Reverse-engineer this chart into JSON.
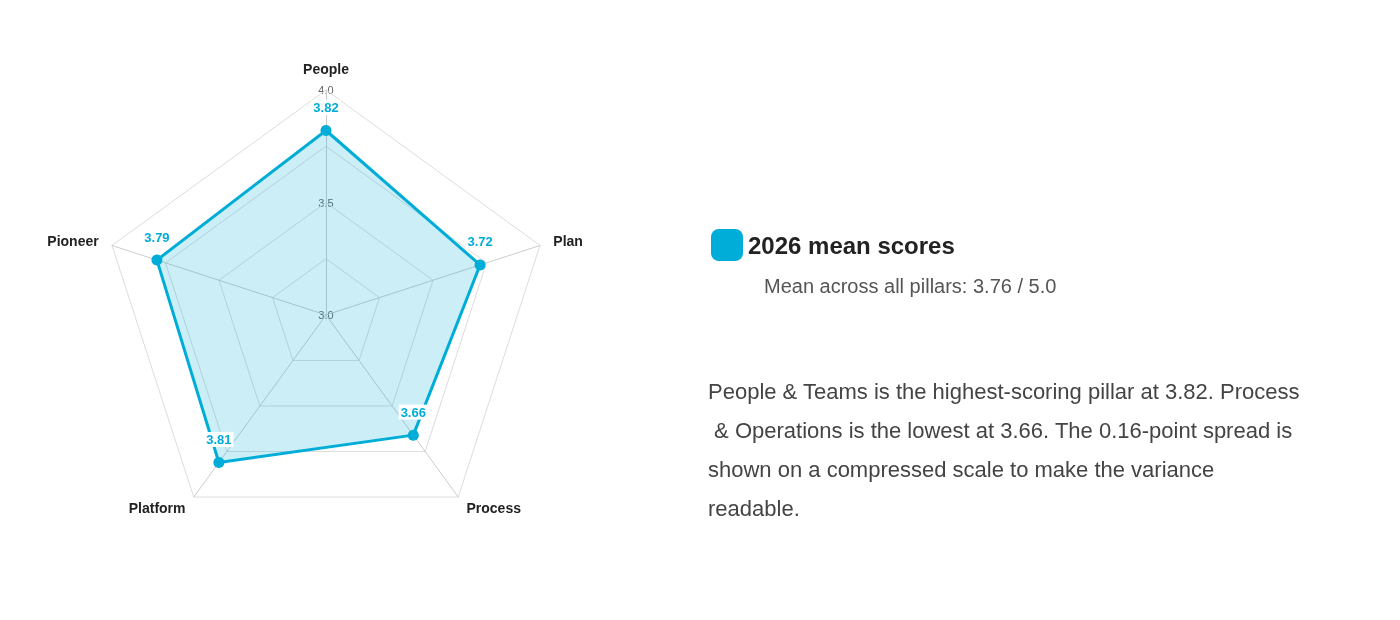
{
  "chart_data": {
    "type": "radar",
    "categories": [
      "People",
      "Plan",
      "Process",
      "Platform",
      "Pioneer"
    ],
    "series": [
      {
        "name": "2026 mean scores",
        "color": "#00add8",
        "values": [
          3.82,
          3.72,
          3.66,
          3.81,
          3.79
        ]
      }
    ],
    "ylim": [
      3,
      4
    ],
    "yticks": [
      {
        "value": 3,
        "label": "3.0"
      },
      {
        "value": 3.5,
        "label": "3.5"
      },
      {
        "value": 4,
        "label": "4.0"
      }
    ],
    "data_labels": true,
    "legend": "right",
    "marker": "circle",
    "grid": true,
    "annotations": [
      "Mean across all pillars: 3.76 / 5.0",
      "People & Teams is the highest-scoring pillar at 3.82. Process & Operations is the lowest at 3.66. The 0.16-point spread is shown on a compressed scale to make the variance readable."
    ]
  }
}
